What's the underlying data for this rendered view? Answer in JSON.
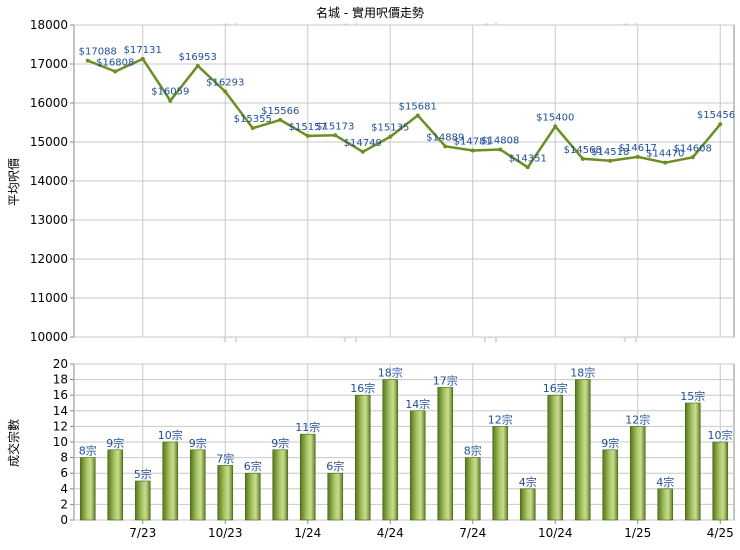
{
  "title": "名城 - 實用呎價走勢",
  "price_ylabel": "平均呎價",
  "count_ylabel": "成交宗數",
  "count_suffix": "宗",
  "price_prefix": "$",
  "watermark": "科一",
  "colors": {
    "line": "#6b8e23",
    "bar_dark": "#4f6b18",
    "bar_light": "#c5da8a",
    "grid": "#c8c8c8",
    "label": "#1f4e9a"
  },
  "chart_data": [
    {
      "type": "line",
      "title": "名城 - 實用呎價走勢",
      "ylabel": "平均呎價",
      "ylim": [
        10000,
        18000
      ],
      "yticks": [
        10000,
        11000,
        12000,
        13000,
        14000,
        15000,
        16000,
        17000,
        18000
      ],
      "grid": true,
      "series": [
        {
          "values": [
            17088,
            16808,
            17131,
            16059,
            16953,
            16293,
            15355,
            15566,
            15157,
            15173,
            14749,
            15135,
            15681,
            14889,
            14781,
            14808,
            14351,
            15400,
            14568,
            14518,
            14617,
            14470,
            14608,
            15456
          ]
        }
      ]
    },
    {
      "type": "bar",
      "ylabel": "成交宗數",
      "ylim": [
        0,
        20
      ],
      "yticks": [
        0,
        2,
        4,
        6,
        8,
        10,
        12,
        14,
        16,
        18,
        20
      ],
      "x_tick_labels": [
        "7/23",
        "10/23",
        "1/24",
        "4/24",
        "7/24",
        "10/24",
        "1/25",
        "4/25"
      ],
      "grid": true,
      "values": [
        8,
        9,
        5,
        10,
        9,
        7,
        6,
        9,
        11,
        6,
        16,
        18,
        14,
        17,
        8,
        12,
        4,
        16,
        18,
        9,
        12,
        4,
        15,
        10
      ]
    }
  ]
}
